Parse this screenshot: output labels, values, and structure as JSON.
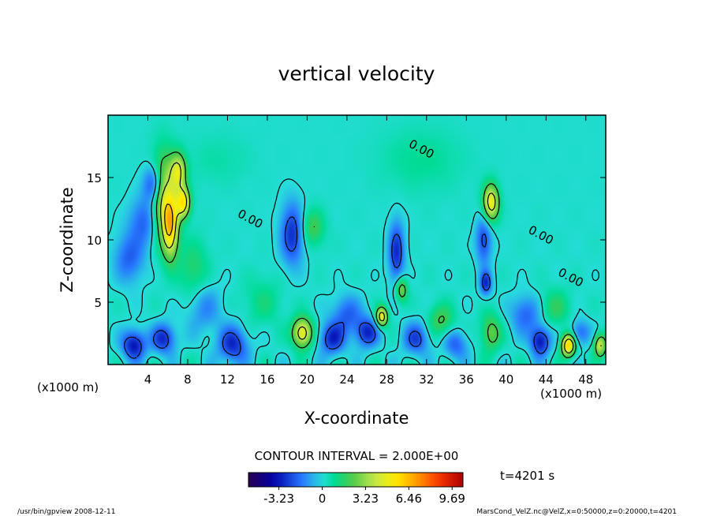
{
  "chart_data": {
    "type": "heatmap",
    "title": "vertical velocity",
    "xlabel": "X-coordinate",
    "ylabel": "Z-coordinate",
    "x_unit_left": "(x1000 m)",
    "x_unit_right": "(x1000 m)",
    "xlim": [
      0,
      50
    ],
    "ylim": [
      0,
      20
    ],
    "x_ticks": [
      4,
      8,
      12,
      16,
      20,
      24,
      28,
      32,
      36,
      40,
      44,
      48
    ],
    "y_ticks": [
      5,
      10,
      15
    ],
    "contour_interval_text": "CONTOUR INTERVAL = 2.000E+00",
    "contour_labels": [
      {
        "text": "0.00",
        "x": 31.3,
        "z": 17.0
      },
      {
        "text": "0.00",
        "x": 14.1,
        "z": 11.4
      },
      {
        "text": "0.00",
        "x": 43.3,
        "z": 10.1
      },
      {
        "text": "0.00",
        "x": 46.3,
        "z": 6.7
      }
    ],
    "colorbar": {
      "ticks": [
        "-3.23",
        "0",
        "3.23",
        "6.46",
        "9.69"
      ],
      "tick_values": [
        -3.23,
        0,
        3.23,
        6.46,
        9.69
      ],
      "range": [
        -5.5,
        10.5
      ]
    },
    "time_text": "t=4201 s",
    "cells": [
      {
        "x": 5.5,
        "z": 13.5,
        "sx": 1.2,
        "sz": 3.5,
        "a": 4
      },
      {
        "x": 6.2,
        "z": 11.0,
        "sx": 0.8,
        "sz": 2.5,
        "a": 5
      },
      {
        "x": 7.0,
        "z": 15.5,
        "sx": 0.8,
        "sz": 1.5,
        "a": 4
      },
      {
        "x": 7.5,
        "z": 13.0,
        "sx": 0.7,
        "sz": 1.2,
        "a": 5
      },
      {
        "x": 4.5,
        "z": 14.5,
        "sx": 1.0,
        "sz": 1.5,
        "a": -3
      },
      {
        "x": 3.5,
        "z": 11.5,
        "sx": 1.5,
        "sz": 2.0,
        "a": -2
      },
      {
        "x": 2.0,
        "z": 8.5,
        "sx": 1.5,
        "sz": 2.0,
        "a": -2
      },
      {
        "x": 8.5,
        "z": 7.5,
        "sx": 1.5,
        "sz": 2.5,
        "a": 1.5
      },
      {
        "x": 2.5,
        "z": 1.5,
        "sx": 1.2,
        "sz": 1.2,
        "a": -3.5
      },
      {
        "x": 5.5,
        "z": 2.0,
        "sx": 1.2,
        "sz": 1.2,
        "a": -3
      },
      {
        "x": 9.5,
        "z": 4.5,
        "sx": 1.8,
        "sz": 2.0,
        "a": -1.5
      },
      {
        "x": 12.5,
        "z": 1.5,
        "sx": 1.5,
        "sz": 1.5,
        "a": -3
      },
      {
        "x": 19.5,
        "z": 2.5,
        "sx": 1.0,
        "sz": 1.2,
        "a": 5
      },
      {
        "x": 22.5,
        "z": 2.0,
        "sx": 1.3,
        "sz": 1.3,
        "a": -3
      },
      {
        "x": 18.5,
        "z": 10.5,
        "sx": 1.2,
        "sz": 2.5,
        "a": -3
      },
      {
        "x": 20.5,
        "z": 11.0,
        "sx": 1.2,
        "sz": 1.5,
        "a": 2
      },
      {
        "x": 24.0,
        "z": 4.0,
        "sx": 1.5,
        "sz": 1.5,
        "a": -2
      },
      {
        "x": 26.0,
        "z": 2.5,
        "sx": 1.2,
        "sz": 1.2,
        "a": -3
      },
      {
        "x": 27.5,
        "z": 3.8,
        "sx": 0.6,
        "sz": 0.8,
        "a": 5
      },
      {
        "x": 29.0,
        "z": 9.0,
        "sx": 0.8,
        "sz": 2.5,
        "a": -3
      },
      {
        "x": 29.5,
        "z": 6.0,
        "sx": 0.6,
        "sz": 1.0,
        "a": 3
      },
      {
        "x": 31.0,
        "z": 2.0,
        "sx": 1.3,
        "sz": 1.3,
        "a": -2.5
      },
      {
        "x": 33.5,
        "z": 3.5,
        "sx": 1.3,
        "sz": 1.3,
        "a": 2
      },
      {
        "x": 35.0,
        "z": 1.5,
        "sx": 1.2,
        "sz": 1.2,
        "a": -2
      },
      {
        "x": 38.5,
        "z": 13.0,
        "sx": 0.8,
        "sz": 1.5,
        "a": 5
      },
      {
        "x": 37.8,
        "z": 10.0,
        "sx": 0.8,
        "sz": 2.0,
        "a": -2.5
      },
      {
        "x": 38.0,
        "z": 6.5,
        "sx": 0.6,
        "sz": 1.0,
        "a": -3
      },
      {
        "x": 38.5,
        "z": 2.5,
        "sx": 1.0,
        "sz": 1.5,
        "a": 2.5
      },
      {
        "x": 42.0,
        "z": 4.0,
        "sx": 1.5,
        "sz": 1.5,
        "a": -2
      },
      {
        "x": 43.5,
        "z": 1.8,
        "sx": 1.0,
        "sz": 1.2,
        "a": -3.5
      },
      {
        "x": 46.3,
        "z": 1.5,
        "sx": 0.7,
        "sz": 0.9,
        "a": 6
      },
      {
        "x": 45.0,
        "z": 4.5,
        "sx": 1.5,
        "sz": 1.5,
        "a": 1.5
      },
      {
        "x": 49.5,
        "z": 1.5,
        "sx": 0.6,
        "sz": 0.9,
        "a": 4
      },
      {
        "x": 47.5,
        "z": 2.5,
        "sx": 1.0,
        "sz": 1.0,
        "a": -2
      },
      {
        "x": 15.5,
        "z": 5.0,
        "sx": 2.0,
        "sz": 2.0,
        "a": 1
      },
      {
        "x": 31.5,
        "z": 16.5,
        "sx": 4.0,
        "sz": 2.5,
        "a": 0.8
      },
      {
        "x": 11.0,
        "z": 16.5,
        "sx": 3.0,
        "sz": 2.0,
        "a": 0.5
      }
    ]
  },
  "footer": {
    "left_text": "/usr/bin/gpview   2008-12-11",
    "right_text": "MarsCond_VelZ.nc@VelZ,x=0:50000,z=0:20000,t=4201"
  }
}
